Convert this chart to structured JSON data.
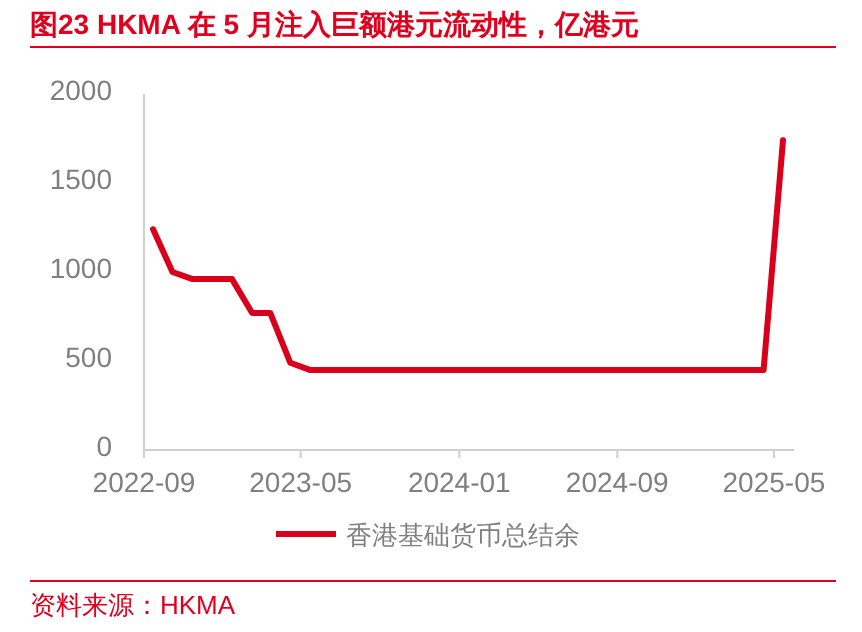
{
  "chart_data": {
    "type": "line",
    "title": "图23  HKMA 在 5 月注入巨额港元流动性，亿港元",
    "x": [
      "2022-09-15",
      "2022-10-15",
      "2022-11-15",
      "2022-12-15",
      "2023-01-15",
      "2023-02-15",
      "2023-03-15",
      "2023-04-15",
      "2023-05-15",
      "2023-06-15",
      "2023-07-15",
      "2023-08-15",
      "2023-09-15",
      "2023-10-15",
      "2023-11-15",
      "2023-12-15",
      "2024-01-15",
      "2024-02-15",
      "2024-03-15",
      "2024-04-15",
      "2024-05-15",
      "2024-06-15",
      "2024-07-15",
      "2024-08-15",
      "2024-09-15",
      "2024-10-15",
      "2024-11-15",
      "2024-12-15",
      "2025-01-15",
      "2025-02-15",
      "2025-03-15",
      "2025-04-15",
      "2025-05-15"
    ],
    "series": [
      {
        "name": "香港基础货币总结余",
        "color": "#d9001b",
        "values": [
          1240,
          1000,
          960,
          960,
          960,
          770,
          770,
          490,
          450,
          450,
          450,
          450,
          450,
          450,
          450,
          450,
          450,
          450,
          450,
          450,
          450,
          450,
          450,
          450,
          450,
          450,
          450,
          450,
          450,
          450,
          450,
          450,
          1740
        ]
      }
    ],
    "xlim": [
      "2022-09",
      "2025-06"
    ],
    "xticks": [
      {
        "value": "2022-09",
        "label": "2022-09"
      },
      {
        "value": "2023-05",
        "label": "2023-05"
      },
      {
        "value": "2024-01",
        "label": "2024-01"
      },
      {
        "value": "2024-09",
        "label": "2024-09"
      },
      {
        "value": "2025-05",
        "label": "2025-05"
      }
    ],
    "ylim": [
      0,
      2000
    ],
    "yticks": [
      0,
      500,
      1000,
      1500,
      2000
    ],
    "legend": "bottom",
    "grid": false,
    "marker": "none",
    "line_style": "solid",
    "annotations": [
      "资料来源：HKMA"
    ]
  }
}
